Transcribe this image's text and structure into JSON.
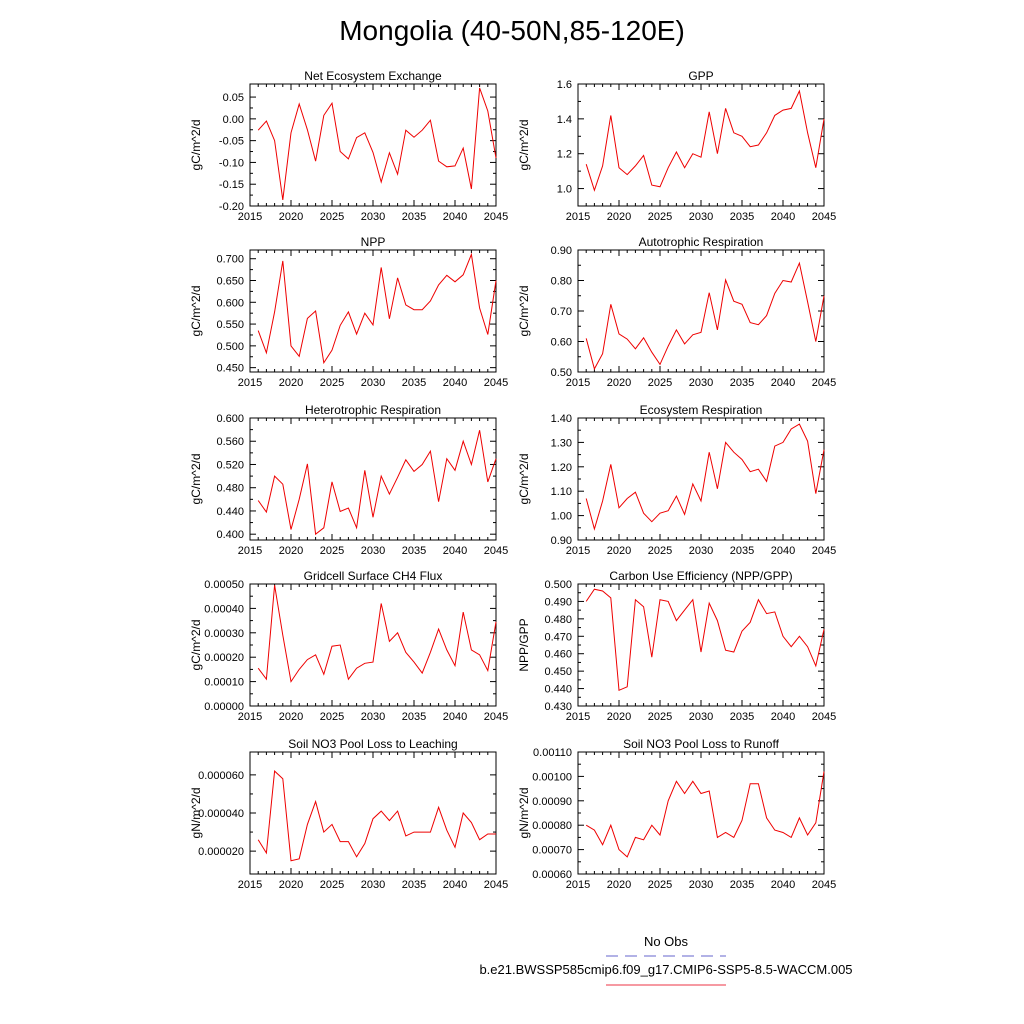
{
  "title": "Mongolia (40-50N,85-120E)",
  "legend": [
    {
      "label": "No Obs",
      "color": "#6666cc",
      "style": "dashed"
    },
    {
      "label": "b.e21.BWSSP585cmip6.f09_g17.CMIP6-SSP5-8.5-WACCM.005",
      "color": "#ee3344",
      "style": "solid"
    }
  ],
  "chart_data": [
    {
      "type": "line",
      "title": "Net Ecosystem Exchange",
      "xlabel": "",
      "ylabel": "gC/m^2/d",
      "xlim": [
        2015,
        2045
      ],
      "ylim": [
        -0.2,
        0.08
      ],
      "xticks": [
        2015,
        2020,
        2025,
        2030,
        2035,
        2040,
        2045
      ],
      "yticks": [
        -0.2,
        -0.15,
        -0.1,
        -0.05,
        0.0,
        0.05
      ],
      "ytick_labels": [
        "-0.20",
        "-0.15",
        "-0.10",
        "-0.05",
        "0.00",
        "0.05"
      ],
      "x": [
        2016,
        2017,
        2018,
        2019,
        2020,
        2021,
        2022,
        2023,
        2024,
        2025,
        2026,
        2027,
        2028,
        2029,
        2030,
        2031,
        2032,
        2033,
        2034,
        2035,
        2036,
        2037,
        2038,
        2039,
        2040,
        2041,
        2042,
        2043,
        2044,
        2045
      ],
      "series": [
        {
          "name": "b.e21.BWSSP585cmip6.f09_g17.CMIP6-SSP5-8.5-WACCM.005",
          "color": "#ee0000",
          "values": [
            -0.026,
            -0.005,
            -0.05,
            -0.186,
            -0.032,
            0.034,
            -0.025,
            -0.097,
            0.008,
            0.036,
            -0.075,
            -0.092,
            -0.043,
            -0.032,
            -0.077,
            -0.145,
            -0.078,
            -0.127,
            -0.026,
            -0.042,
            -0.026,
            -0.003,
            -0.097,
            -0.11,
            -0.108,
            -0.067,
            -0.161,
            0.071,
            0.018,
            -0.09
          ]
        }
      ]
    },
    {
      "type": "line",
      "title": "GPP",
      "xlabel": "",
      "ylabel": "gC/m^2/d",
      "xlim": [
        2015,
        2045
      ],
      "ylim": [
        0.9,
        1.6
      ],
      "xticks": [
        2015,
        2020,
        2025,
        2030,
        2035,
        2040,
        2045
      ],
      "yticks": [
        1.0,
        1.2,
        1.4,
        1.6
      ],
      "ytick_labels": [
        "1.0",
        "1.2",
        "1.4",
        "1.6"
      ],
      "x": [
        2016,
        2017,
        2018,
        2019,
        2020,
        2021,
        2022,
        2023,
        2024,
        2025,
        2026,
        2027,
        2028,
        2029,
        2030,
        2031,
        2032,
        2033,
        2034,
        2035,
        2036,
        2037,
        2038,
        2039,
        2040,
        2041,
        2042,
        2043,
        2044,
        2045
      ],
      "series": [
        {
          "name": "b.e21.BWSSP585cmip6.f09_g17.CMIP6-SSP5-8.5-WACCM.005",
          "color": "#ee0000",
          "values": [
            1.14,
            0.99,
            1.13,
            1.42,
            1.12,
            1.08,
            1.13,
            1.19,
            1.02,
            1.01,
            1.12,
            1.21,
            1.12,
            1.2,
            1.18,
            1.44,
            1.2,
            1.46,
            1.32,
            1.3,
            1.24,
            1.25,
            1.32,
            1.42,
            1.45,
            1.46,
            1.56,
            1.32,
            1.12,
            1.4
          ]
        }
      ]
    },
    {
      "type": "line",
      "title": "NPP",
      "xlabel": "",
      "ylabel": "gC/m^2/d",
      "xlim": [
        2015,
        2045
      ],
      "ylim": [
        0.44,
        0.72
      ],
      "xticks": [
        2015,
        2020,
        2025,
        2030,
        2035,
        2040,
        2045
      ],
      "yticks": [
        0.45,
        0.5,
        0.55,
        0.6,
        0.65,
        0.7
      ],
      "ytick_labels": [
        "0.450",
        "0.500",
        "0.550",
        "0.600",
        "0.650",
        "0.700"
      ],
      "x": [
        2016,
        2017,
        2018,
        2019,
        2020,
        2021,
        2022,
        2023,
        2024,
        2025,
        2026,
        2027,
        2028,
        2029,
        2030,
        2031,
        2032,
        2033,
        2034,
        2035,
        2036,
        2037,
        2038,
        2039,
        2040,
        2041,
        2042,
        2043,
        2044,
        2045
      ],
      "series": [
        {
          "name": "b.e21.BWSSP585cmip6.f09_g17.CMIP6-SSP5-8.5-WACCM.005",
          "color": "#ee0000",
          "values": [
            0.535,
            0.484,
            0.578,
            0.695,
            0.5,
            0.476,
            0.563,
            0.58,
            0.461,
            0.49,
            0.547,
            0.578,
            0.527,
            0.575,
            0.548,
            0.68,
            0.562,
            0.656,
            0.594,
            0.583,
            0.583,
            0.603,
            0.64,
            0.662,
            0.647,
            0.663,
            0.71,
            0.587,
            0.526,
            0.65
          ]
        }
      ]
    },
    {
      "type": "line",
      "title": "Autotrophic Respiration",
      "xlabel": "",
      "ylabel": "gC/m^2/d",
      "xlim": [
        2015,
        2045
      ],
      "ylim": [
        0.5,
        0.9
      ],
      "xticks": [
        2015,
        2020,
        2025,
        2030,
        2035,
        2040,
        2045
      ],
      "yticks": [
        0.5,
        0.6,
        0.7,
        0.8,
        0.9
      ],
      "ytick_labels": [
        "0.50",
        "0.60",
        "0.70",
        "0.80",
        "0.90"
      ],
      "x": [
        2016,
        2017,
        2018,
        2019,
        2020,
        2021,
        2022,
        2023,
        2024,
        2025,
        2026,
        2027,
        2028,
        2029,
        2030,
        2031,
        2032,
        2033,
        2034,
        2035,
        2036,
        2037,
        2038,
        2039,
        2040,
        2041,
        2042,
        2043,
        2044,
        2045
      ],
      "series": [
        {
          "name": "b.e21.BWSSP585cmip6.f09_g17.CMIP6-SSP5-8.5-WACCM.005",
          "color": "#ee0000",
          "values": [
            0.61,
            0.51,
            0.56,
            0.722,
            0.625,
            0.608,
            0.576,
            0.612,
            0.565,
            0.525,
            0.585,
            0.638,
            0.592,
            0.622,
            0.63,
            0.76,
            0.638,
            0.802,
            0.732,
            0.722,
            0.662,
            0.655,
            0.685,
            0.758,
            0.8,
            0.795,
            0.857,
            0.73,
            0.6,
            0.75
          ]
        }
      ]
    },
    {
      "type": "line",
      "title": "Heterotrophic Respiration",
      "xlabel": "",
      "ylabel": "gC/m^2/d",
      "xlim": [
        2015,
        2045
      ],
      "ylim": [
        0.39,
        0.6
      ],
      "xticks": [
        2015,
        2020,
        2025,
        2030,
        2035,
        2040,
        2045
      ],
      "yticks": [
        0.4,
        0.44,
        0.48,
        0.52,
        0.56,
        0.6
      ],
      "ytick_labels": [
        "0.400",
        "0.440",
        "0.480",
        "0.520",
        "0.560",
        "0.600"
      ],
      "x": [
        2016,
        2017,
        2018,
        2019,
        2020,
        2021,
        2022,
        2023,
        2024,
        2025,
        2026,
        2027,
        2028,
        2029,
        2030,
        2031,
        2032,
        2033,
        2034,
        2035,
        2036,
        2037,
        2038,
        2039,
        2040,
        2041,
        2042,
        2043,
        2044,
        2045
      ],
      "series": [
        {
          "name": "b.e21.BWSSP585cmip6.f09_g17.CMIP6-SSP5-8.5-WACCM.005",
          "color": "#ee0000",
          "values": [
            0.458,
            0.438,
            0.5,
            0.486,
            0.408,
            0.46,
            0.521,
            0.4,
            0.411,
            0.49,
            0.439,
            0.445,
            0.411,
            0.51,
            0.429,
            0.5,
            0.469,
            0.498,
            0.528,
            0.508,
            0.52,
            0.543,
            0.456,
            0.53,
            0.51,
            0.56,
            0.52,
            0.579,
            0.49,
            0.53
          ]
        }
      ]
    },
    {
      "type": "line",
      "title": "Ecosystem Respiration",
      "xlabel": "",
      "ylabel": "gC/m^2/d",
      "xlim": [
        2015,
        2045
      ],
      "ylim": [
        0.9,
        1.4
      ],
      "xticks": [
        2015,
        2020,
        2025,
        2030,
        2035,
        2040,
        2045
      ],
      "yticks": [
        0.9,
        1.0,
        1.1,
        1.2,
        1.3,
        1.4
      ],
      "ytick_labels": [
        "0.90",
        "1.00",
        "1.10",
        "1.20",
        "1.30",
        "1.40"
      ],
      "x": [
        2016,
        2017,
        2018,
        2019,
        2020,
        2021,
        2022,
        2023,
        2024,
        2025,
        2026,
        2027,
        2028,
        2029,
        2030,
        2031,
        2032,
        2033,
        2034,
        2035,
        2036,
        2037,
        2038,
        2039,
        2040,
        2041,
        2042,
        2043,
        2044,
        2045
      ],
      "series": [
        {
          "name": "b.e21.BWSSP585cmip6.f09_g17.CMIP6-SSP5-8.5-WACCM.005",
          "color": "#ee0000",
          "values": [
            1.07,
            0.945,
            1.06,
            1.21,
            1.032,
            1.07,
            1.096,
            1.01,
            0.975,
            1.01,
            1.02,
            1.08,
            1.005,
            1.13,
            1.06,
            1.26,
            1.11,
            1.3,
            1.26,
            1.23,
            1.18,
            1.19,
            1.14,
            1.285,
            1.3,
            1.355,
            1.375,
            1.305,
            1.09,
            1.27
          ]
        }
      ]
    },
    {
      "type": "line",
      "title": "Gridcell Surface CH4 Flux",
      "xlabel": "",
      "ylabel": "gC/m^2/d",
      "xlim": [
        2015,
        2045
      ],
      "ylim": [
        0.0,
        0.0005
      ],
      "xticks": [
        2015,
        2020,
        2025,
        2030,
        2035,
        2040,
        2045
      ],
      "yticks": [
        0.0,
        0.0001,
        0.0002,
        0.0003,
        0.0004,
        0.0005
      ],
      "ytick_labels": [
        "0.00000",
        "0.00010",
        "0.00020",
        "0.00030",
        "0.00040",
        "0.00050"
      ],
      "x": [
        2016,
        2017,
        2018,
        2019,
        2020,
        2021,
        2022,
        2023,
        2024,
        2025,
        2026,
        2027,
        2028,
        2029,
        2030,
        2031,
        2032,
        2033,
        2034,
        2035,
        2036,
        2037,
        2038,
        2039,
        2040,
        2041,
        2042,
        2043,
        2044,
        2045
      ],
      "series": [
        {
          "name": "b.e21.BWSSP585cmip6.f09_g17.CMIP6-SSP5-8.5-WACCM.005",
          "color": "#ee0000",
          "values": [
            0.000155,
            0.00011,
            0.000495,
            0.00029,
            0.0001,
            0.00015,
            0.00019,
            0.00021,
            0.00013,
            0.000245,
            0.00025,
            0.00011,
            0.000155,
            0.000175,
            0.00018,
            0.00042,
            0.000265,
            0.0003,
            0.00022,
            0.00018,
            0.000135,
            0.00022,
            0.000315,
            0.00023,
            0.000165,
            0.000385,
            0.00023,
            0.00021,
            0.000145,
            0.000345
          ]
        }
      ]
    },
    {
      "type": "line",
      "title": "Carbon Use Efficiency (NPP/GPP)",
      "xlabel": "",
      "ylabel": "NPP/GPP",
      "xlim": [
        2015,
        2045
      ],
      "ylim": [
        0.43,
        0.5
      ],
      "xticks": [
        2015,
        2020,
        2025,
        2030,
        2035,
        2040,
        2045
      ],
      "yticks": [
        0.43,
        0.44,
        0.45,
        0.46,
        0.47,
        0.48,
        0.49,
        0.5
      ],
      "ytick_labels": [
        "0.430",
        "0.440",
        "0.450",
        "0.460",
        "0.470",
        "0.480",
        "0.490",
        "0.500"
      ],
      "x": [
        2016,
        2017,
        2018,
        2019,
        2020,
        2021,
        2022,
        2023,
        2024,
        2025,
        2026,
        2027,
        2028,
        2029,
        2030,
        2031,
        2032,
        2033,
        2034,
        2035,
        2036,
        2037,
        2038,
        2039,
        2040,
        2041,
        2042,
        2043,
        2044,
        2045
      ],
      "series": [
        {
          "name": "b.e21.BWSSP585cmip6.f09_g17.CMIP6-SSP5-8.5-WACCM.005",
          "color": "#ee0000",
          "values": [
            0.49,
            0.497,
            0.496,
            0.492,
            0.439,
            0.441,
            0.491,
            0.487,
            0.458,
            0.491,
            0.49,
            0.479,
            0.485,
            0.491,
            0.461,
            0.489,
            0.479,
            0.462,
            0.461,
            0.473,
            0.478,
            0.491,
            0.483,
            0.484,
            0.47,
            0.464,
            0.47,
            0.464,
            0.453,
            0.474
          ]
        }
      ]
    },
    {
      "type": "line",
      "title": "Soil NO3 Pool Loss to Leaching",
      "xlabel": "",
      "ylabel": "gN/m^2/d",
      "xlim": [
        2015,
        2045
      ],
      "ylim": [
        8e-06,
        7.2e-05
      ],
      "xticks": [
        2015,
        2020,
        2025,
        2030,
        2035,
        2040,
        2045
      ],
      "yticks": [
        2e-05,
        4e-05,
        6e-05
      ],
      "ytick_labels": [
        "0.000020",
        "0.000040",
        "0.000060"
      ],
      "x": [
        2016,
        2017,
        2018,
        2019,
        2020,
        2021,
        2022,
        2023,
        2024,
        2025,
        2026,
        2027,
        2028,
        2029,
        2030,
        2031,
        2032,
        2033,
        2034,
        2035,
        2036,
        2037,
        2038,
        2039,
        2040,
        2041,
        2042,
        2043,
        2044,
        2045
      ],
      "series": [
        {
          "name": "b.e21.BWSSP585cmip6.f09_g17.CMIP6-SSP5-8.5-WACCM.005",
          "color": "#ee0000",
          "values": [
            2.6e-05,
            1.9e-05,
            6.2e-05,
            5.8e-05,
            1.5e-05,
            1.6e-05,
            3.4e-05,
            4.6e-05,
            3e-05,
            3.4e-05,
            2.5e-05,
            2.5e-05,
            1.7e-05,
            2.4e-05,
            3.7e-05,
            4.1e-05,
            3.6e-05,
            4.1e-05,
            2.8e-05,
            3e-05,
            3e-05,
            3e-05,
            4.3e-05,
            3.1e-05,
            2.2e-05,
            4e-05,
            3.5e-05,
            2.6e-05,
            2.9e-05,
            2.9e-05
          ]
        }
      ]
    },
    {
      "type": "line",
      "title": "Soil NO3 Pool Loss to Runoff",
      "xlabel": "",
      "ylabel": "gN/m^2/d",
      "xlim": [
        2015,
        2045
      ],
      "ylim": [
        0.0006,
        0.0011
      ],
      "xticks": [
        2015,
        2020,
        2025,
        2030,
        2035,
        2040,
        2045
      ],
      "yticks": [
        0.0006,
        0.0007,
        0.0008,
        0.0009,
        0.001,
        0.0011
      ],
      "ytick_labels": [
        "0.00060",
        "0.00070",
        "0.00080",
        "0.00090",
        "0.00100",
        "0.00110"
      ],
      "x": [
        2016,
        2017,
        2018,
        2019,
        2020,
        2021,
        2022,
        2023,
        2024,
        2025,
        2026,
        2027,
        2028,
        2029,
        2030,
        2031,
        2032,
        2033,
        2034,
        2035,
        2036,
        2037,
        2038,
        2039,
        2040,
        2041,
        2042,
        2043,
        2044,
        2045
      ],
      "series": [
        {
          "name": "b.e21.BWSSP585cmip6.f09_g17.CMIP6-SSP5-8.5-WACCM.005",
          "color": "#ee0000",
          "values": [
            0.0008,
            0.00078,
            0.00072,
            0.0008,
            0.0007,
            0.00067,
            0.00075,
            0.00074,
            0.0008,
            0.00076,
            0.0009,
            0.00098,
            0.00093,
            0.00098,
            0.00093,
            0.00094,
            0.00075,
            0.00077,
            0.00075,
            0.00082,
            0.00097,
            0.00097,
            0.00083,
            0.00078,
            0.00077,
            0.00075,
            0.00083,
            0.00076,
            0.00081,
            0.00102
          ]
        }
      ]
    }
  ]
}
